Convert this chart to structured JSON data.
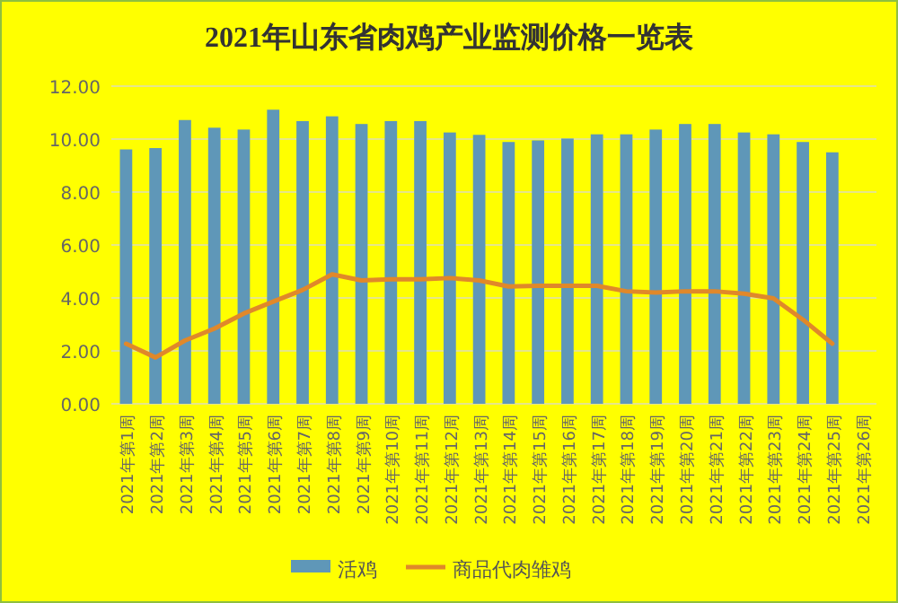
{
  "chart_data": {
    "type": "bar",
    "title": "2021年山东省肉鸡产业监测价格一览表",
    "categories": [
      "2021年第1周",
      "2021年第2周",
      "2021年第3周",
      "2021年第4周",
      "2021年第5周",
      "2021年第6周",
      "2021年第7周",
      "2021年第8周",
      "2021年第9周",
      "2021年第10周",
      "2021年第11周",
      "2021年第12周",
      "2021年第13周",
      "2021年第14周",
      "2021年第15周",
      "2021年第16周",
      "2021年第17周",
      "2021年第18周",
      "2021年第19周",
      "2021年第20周",
      "2021年第21周",
      "2021年第22周",
      "2021年第23周",
      "2021年第24周",
      "2021年第25周",
      "2021年第26周"
    ],
    "series": [
      {
        "name": "活鸡",
        "color": "#5f97b8",
        "values": [
          9.61,
          9.66,
          10.72,
          10.43,
          10.36,
          11.11,
          10.68,
          10.86,
          10.57,
          10.68,
          10.68,
          10.25,
          10.16,
          9.89,
          9.95,
          10.02,
          10.18,
          10.18,
          10.36,
          10.57,
          10.57,
          10.25,
          10.18,
          9.89,
          9.5,
          null
        ]
      },
      {
        "name": "商品代肉雏鸡",
        "type": "line",
        "color": "#e0882a",
        "values": [
          2.27,
          1.75,
          2.39,
          2.84,
          3.41,
          3.86,
          4.3,
          4.89,
          4.66,
          4.7,
          4.7,
          4.75,
          4.66,
          4.43,
          4.46,
          4.46,
          4.46,
          4.25,
          4.2,
          4.25,
          4.25,
          4.16,
          3.98,
          3.18,
          2.27,
          null
        ]
      }
    ],
    "ylim": [
      0,
      12
    ],
    "yticks": [
      {
        "value": 0,
        "label": "0.00"
      },
      {
        "value": 2,
        "label": "2.00"
      },
      {
        "value": 4,
        "label": "4.00"
      },
      {
        "value": 6,
        "label": "6.00"
      },
      {
        "value": 8,
        "label": "8.00"
      },
      {
        "value": 10,
        "label": "10.00"
      },
      {
        "value": 12,
        "label": "12.00"
      }
    ],
    "grid": "y",
    "legend": "bottom",
    "marker": "none",
    "line_style": "solid"
  }
}
